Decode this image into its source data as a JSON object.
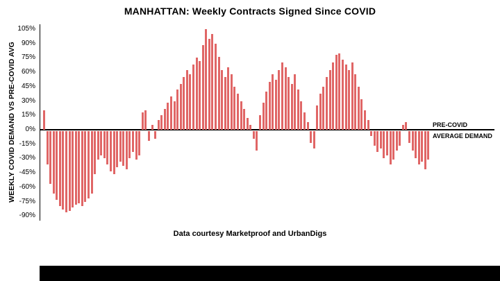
{
  "chart_data": {
    "type": "bar",
    "title": "MANHATTAN: Weekly Contracts Signed Since COVID",
    "ylabel": "WEEKLY COVID DEMAND VS PRE-COVID AVG",
    "caption": "Data courtesy Marketproof and UrbanDigs",
    "annotation": {
      "line1": "PRE-COVID",
      "line2": "AVERAGE DEMAND"
    },
    "bar_color": "#e06666",
    "axis_color": "#000000",
    "x_unit": "week since COVID start",
    "ylim": [
      -90,
      105
    ],
    "ytick_step": 15,
    "ytick_labels": [
      "105%",
      "90%",
      "75%",
      "60%",
      "45%",
      "30%",
      "15%",
      "0%",
      "-15%",
      "-30%",
      "-45%",
      "-60%",
      "-75%",
      "-90%"
    ],
    "grid": false,
    "legend": "none",
    "values": [
      20,
      -35,
      -55,
      -65,
      -72,
      -78,
      -82,
      -85,
      -83,
      -80,
      -77,
      -75,
      -78,
      -74,
      -70,
      -65,
      -45,
      -30,
      -25,
      -28,
      -35,
      -42,
      -45,
      -38,
      -32,
      -36,
      -40,
      -28,
      -22,
      -30,
      -25,
      18,
      20,
      -10,
      5,
      -8,
      10,
      15,
      22,
      28,
      35,
      30,
      42,
      48,
      55,
      62,
      58,
      68,
      75,
      72,
      88,
      105,
      95,
      100,
      90,
      76,
      62,
      55,
      65,
      58,
      45,
      38,
      30,
      22,
      12,
      5,
      -8,
      -20,
      15,
      28,
      40,
      50,
      58,
      52,
      62,
      70,
      65,
      55,
      48,
      58,
      42,
      30,
      18,
      8,
      -12,
      -18,
      25,
      38,
      45,
      55,
      62,
      70,
      78,
      80,
      73,
      68,
      62,
      70,
      58,
      45,
      32,
      20,
      10,
      -5,
      -15,
      -22,
      -18,
      -28,
      -25,
      -35,
      -30,
      -20,
      -15,
      5,
      8,
      -12,
      -20,
      -28,
      -35,
      -32,
      -40,
      -30
    ]
  }
}
